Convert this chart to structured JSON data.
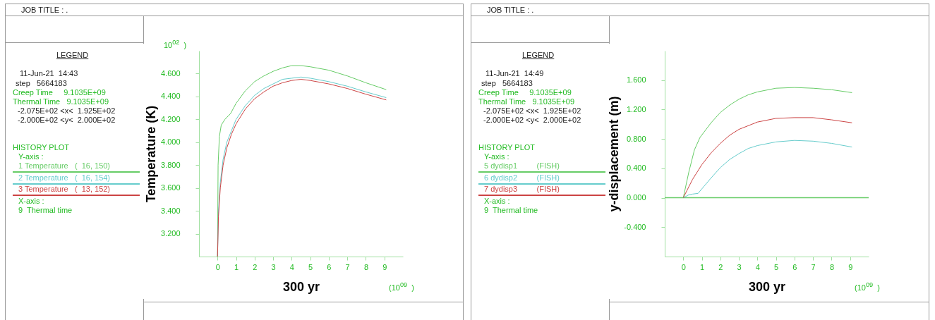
{
  "chart_data": [
    {
      "type": "line",
      "xlabel": "300 yr",
      "ylabel": "Temperature (K)",
      "xlim": [
        -1,
        10
      ],
      "xticks": [
        0,
        1,
        2,
        3,
        4,
        5,
        6,
        7,
        8,
        9
      ],
      "ylim": [
        3.0,
        4.8
      ],
      "yticks": [
        {
          "value": 3.2,
          "label": "3.200"
        },
        {
          "value": 3.4,
          "label": "3.400"
        },
        {
          "value": 3.6,
          "label": "3.600"
        },
        {
          "value": 3.8,
          "label": "3.800"
        },
        {
          "value": 4.0,
          "label": "4.000"
        },
        {
          "value": 4.2,
          "label": "4.200"
        },
        {
          "value": 4.4,
          "label": "4.400"
        },
        {
          "value": 4.6,
          "label": "4.600"
        }
      ],
      "grid": false,
      "legend": "left",
      "annotations": [
        "JOB TITLE : .",
        "LEGEND",
        "11-Jun-21  14:43",
        "step   5664183",
        "Creep Time     9.1035E+09",
        "Thermal Time   9.1035E+09",
        " -2.075E+02 <x<  1.925E+02",
        " -2.000E+02 <y<  2.000E+02",
        "HISTORY PLOT",
        "Y-axis :",
        "X-axis :",
        "9  Thermal time",
        "10$^{02}$  )",
        "(10$^{09}$  )"
      ],
      "series": [
        {
          "name": "1 Temperature   (  16, 150)",
          "color": "#66cc66",
          "x": [
            0,
            0.03,
            0.1,
            0.2,
            0.4,
            0.7,
            1,
            1.5,
            2,
            2.5,
            3,
            3.5,
            4,
            4.5,
            5,
            6,
            7,
            8,
            9.1
          ],
          "values": [
            3.0,
            3.8,
            4.05,
            4.15,
            4.2,
            4.25,
            4.34,
            4.45,
            4.53,
            4.58,
            4.62,
            4.65,
            4.67,
            4.67,
            4.66,
            4.63,
            4.58,
            4.52,
            4.46
          ]
        },
        {
          "name": "2 Temperature   (  16, 154)",
          "color": "#66cccc",
          "x": [
            0,
            0.05,
            0.15,
            0.3,
            0.5,
            0.75,
            1,
            1.5,
            2,
            2.5,
            3,
            3.5,
            4,
            4.5,
            5,
            6,
            7,
            8,
            9.1
          ],
          "values": [
            3.0,
            3.4,
            3.65,
            3.85,
            4.0,
            4.1,
            4.2,
            4.32,
            4.41,
            4.47,
            4.51,
            4.55,
            4.56,
            4.57,
            4.56,
            4.53,
            4.49,
            4.44,
            4.39
          ]
        },
        {
          "name": "3 Temperature   (  13, 152)",
          "color": "#cc4444",
          "x": [
            0,
            0.05,
            0.15,
            0.3,
            0.5,
            0.75,
            1,
            1.5,
            2,
            2.5,
            3,
            3.5,
            4,
            4.5,
            5,
            6,
            7,
            8,
            9.1
          ],
          "values": [
            3.0,
            3.35,
            3.6,
            3.8,
            3.95,
            4.07,
            4.16,
            4.29,
            4.38,
            4.44,
            4.49,
            4.52,
            4.54,
            4.55,
            4.54,
            4.51,
            4.47,
            4.42,
            4.37
          ]
        }
      ]
    },
    {
      "type": "line",
      "xlabel": "300 yr",
      "ylabel": "y-displacement (m)",
      "xlim": [
        -1,
        10
      ],
      "xticks": [
        0,
        1,
        2,
        3,
        4,
        5,
        6,
        7,
        8,
        9
      ],
      "ylim": [
        -0.8,
        2.0
      ],
      "yticks": [
        {
          "value": -0.4,
          "label": "-0.400"
        },
        {
          "value": 0,
          "label": "0.000"
        },
        {
          "value": 0.4,
          "label": "0.400"
        },
        {
          "value": 0.8,
          "label": "0.800"
        },
        {
          "value": 1.2,
          "label": "1.200"
        },
        {
          "value": 1.6,
          "label": "1.600"
        }
      ],
      "grid": false,
      "legend": "left",
      "ref_lines": [
        {
          "axis": "y",
          "value": 0,
          "color": "#66cc66"
        }
      ],
      "annotations": [
        "JOB TITLE : .",
        "LEGEND",
        "11-Jun-21  14:49",
        "step   5664183",
        "Creep Time     9.1035E+09",
        "Thermal Time   9.1035E+09",
        " -2.075E+02 <x<  1.925E+02",
        " -2.000E+02 <y<  2.000E+02",
        "HISTORY PLOT",
        "Y-axis :",
        "X-axis :",
        "9  Thermal time",
        "(10$^{09}$  )"
      ],
      "series": [
        {
          "name": "5 dydisp1         (FISH)",
          "color": "#66cc66",
          "x": [
            0,
            0.3,
            0.6,
            0.9,
            1.5,
            2,
            2.5,
            3,
            3.5,
            4,
            5,
            6,
            7,
            8,
            9.1
          ],
          "values": [
            0,
            0.35,
            0.65,
            0.82,
            1.02,
            1.16,
            1.26,
            1.34,
            1.4,
            1.44,
            1.49,
            1.5,
            1.49,
            1.47,
            1.43
          ]
        },
        {
          "name": "6 dydisp2         (FISH)",
          "color": "#66cccc",
          "x": [
            0,
            0.3,
            0.5,
            0.8,
            1,
            1.5,
            2,
            2.5,
            3,
            3.5,
            4,
            5,
            6,
            7,
            8,
            9.1
          ],
          "values": [
            0,
            0.04,
            0.05,
            0.06,
            0.12,
            0.27,
            0.41,
            0.52,
            0.6,
            0.67,
            0.71,
            0.76,
            0.78,
            0.77,
            0.74,
            0.69
          ]
        },
        {
          "name": "7 dydisp3         (FISH)",
          "color": "#cc4444",
          "x": [
            0,
            0.5,
            1,
            1.5,
            2,
            2.5,
            3,
            4,
            5,
            6,
            7,
            8,
            9.1
          ],
          "values": [
            0,
            0.25,
            0.45,
            0.61,
            0.74,
            0.85,
            0.93,
            1.03,
            1.08,
            1.09,
            1.09,
            1.06,
            1.02
          ]
        }
      ]
    }
  ]
}
